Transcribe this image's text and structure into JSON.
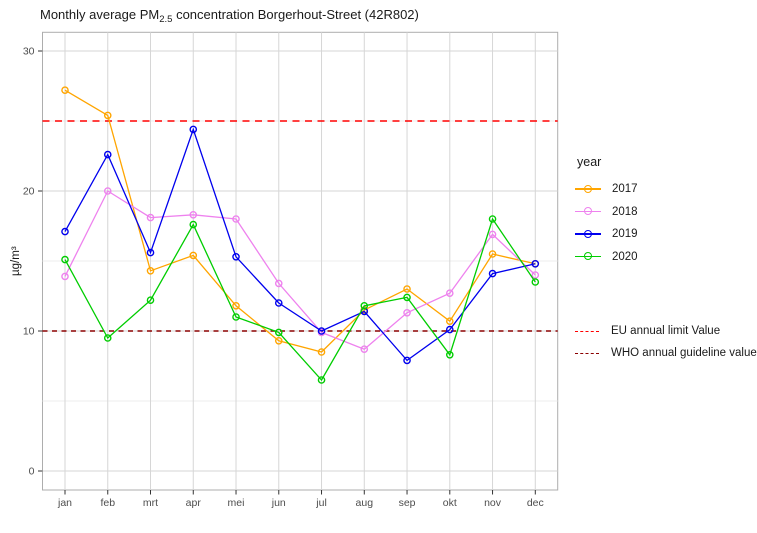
{
  "title": {
    "prefix": "Monthly average PM",
    "subscript": "2.5",
    "suffix": " concentration Borgerhout-Street (42R802)"
  },
  "chart_data": {
    "type": "line",
    "title": "Monthly average PM2.5 concentration Borgerhout-Street (42R802)",
    "xlabel": "",
    "ylabel": "µg/m³",
    "categories": [
      "jan",
      "feb",
      "mrt",
      "apr",
      "mei",
      "jun",
      "jul",
      "aug",
      "sep",
      "okt",
      "nov",
      "dec"
    ],
    "ylim": [
      -1.4,
      31.3
    ],
    "y_major_ticks": [
      0,
      10,
      20,
      30
    ],
    "y_minor_ticks": [
      5,
      15,
      25
    ],
    "grid": "on",
    "legend_title": "year",
    "legend_position": "right",
    "series": [
      {
        "name": "2017",
        "color": "#FFA500",
        "values": [
          27.2,
          25.4,
          14.3,
          15.4,
          11.8,
          9.3,
          8.5,
          11.5,
          13.0,
          10.7,
          15.5,
          14.8
        ]
      },
      {
        "name": "2018",
        "color": "#EE82EE",
        "values": [
          13.9,
          20.0,
          18.1,
          18.3,
          18.0,
          13.4,
          9.9,
          8.7,
          11.3,
          12.7,
          16.9,
          14.0
        ]
      },
      {
        "name": "2019",
        "color": "#0000EE",
        "values": [
          17.1,
          22.6,
          15.6,
          24.4,
          15.3,
          12.0,
          10.0,
          11.4,
          7.9,
          10.1,
          14.1,
          14.8
        ]
      },
      {
        "name": "2020",
        "color": "#00CD00",
        "values": [
          15.1,
          9.5,
          12.2,
          17.6,
          11.0,
          9.9,
          6.5,
          11.8,
          12.4,
          8.3,
          18.0,
          13.5
        ]
      }
    ],
    "reference_lines": [
      {
        "label": "EU annual limit Value",
        "value": 25,
        "color": "#FF0000"
      },
      {
        "label": "WHO annual guideline value",
        "value": 10,
        "color": "#8B0000"
      }
    ]
  },
  "style": {
    "panel_border": "#ADADAD",
    "grid_major": "#D6D6D6",
    "grid_minor": "#ECECEC",
    "tick_color": "#333333",
    "tick_label_color": "#4D4D4D"
  }
}
